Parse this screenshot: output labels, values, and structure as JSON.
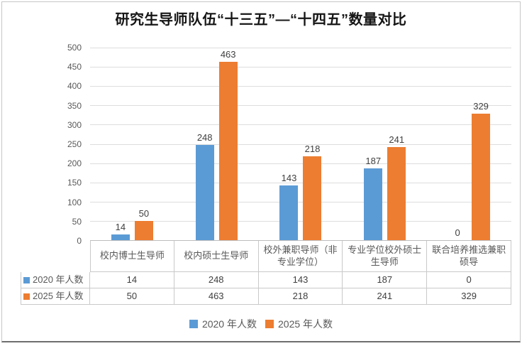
{
  "title": "研究生导师队伍“十三五”—“十四五”数量对比",
  "chart_data": {
    "type": "bar",
    "title": "研究生导师队伍“十三五”—“十四五”数量对比",
    "categories": [
      "校内博士生导师",
      "校内硕士生导师",
      "校外兼职导师（非专业学位）",
      "专业学位校外硕士生导师",
      "联合培养推选兼职硕导"
    ],
    "series": [
      {
        "name": "2020 年人数",
        "color": "#5B9BD5",
        "values": [
          14,
          248,
          143,
          187,
          0
        ]
      },
      {
        "name": "2025 年人数",
        "color": "#ED7D31",
        "values": [
          50,
          463,
          218,
          241,
          329
        ]
      }
    ],
    "ylim": [
      0,
      500
    ],
    "ytick_step": 50,
    "grid": true,
    "legend_position": "bottom",
    "data_table_visible": true,
    "colors": {
      "gridline": "#dddddd",
      "axis_text": "#595959",
      "data_label": "#3f3f3f",
      "table_border": "#c9c9c9"
    }
  }
}
